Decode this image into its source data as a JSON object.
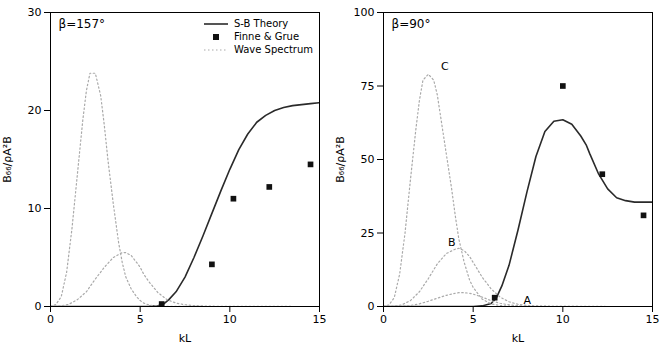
{
  "chart_data": [
    {
      "type": "line",
      "xlabel": "kL",
      "ylabel": "B₆₆/ρA²B",
      "xlim": [
        0,
        15
      ],
      "xticks": [
        0,
        5,
        10,
        15
      ],
      "ylim": [
        0,
        30
      ],
      "yticks": [
        0,
        10,
        20,
        30
      ],
      "legend": "upper right",
      "annotations": [
        {
          "text": "β=157°"
        }
      ],
      "series": [
        {
          "name": "S-B Theory",
          "type": "line",
          "line_style": "solid",
          "color": "#2a2a2a",
          "x": [
            0,
            1,
            2,
            3,
            4,
            5,
            5.5,
            6.0,
            6.3,
            6.6,
            7.0,
            7.5,
            8.0,
            8.5,
            9.0,
            9.5,
            10.0,
            10.5,
            11.0,
            11.5,
            12.0,
            12.5,
            13.0,
            13.5,
            14.0,
            14.5,
            15.0
          ],
          "values": [
            0,
            0,
            0,
            0,
            0,
            0,
            0.02,
            0.08,
            0.25,
            0.7,
            1.5,
            3.0,
            5.0,
            7.2,
            9.5,
            11.8,
            14.0,
            16.0,
            17.6,
            18.8,
            19.5,
            20.0,
            20.3,
            20.5,
            20.6,
            20.7,
            20.8
          ]
        },
        {
          "name": "Finne & Grue",
          "type": "scatter",
          "marker": "square",
          "color": "#111111",
          "x": [
            6.2,
            9.0,
            10.2,
            12.2,
            14.5
          ],
          "values": [
            0.25,
            4.3,
            11.0,
            12.2,
            14.5
          ]
        },
        {
          "name": "Wave Spectrum",
          "type": "line",
          "line_style": "dotted",
          "color": "#aaaaaa",
          "x": [
            0.0,
            0.3,
            0.6,
            0.9,
            1.2,
            1.5,
            1.8,
            2.0,
            2.2,
            2.5,
            2.8,
            3.0,
            3.2,
            3.5,
            3.8,
            4.0,
            4.2,
            4.5,
            4.8,
            5.0,
            5.2,
            5.5,
            5.8,
            6.0,
            6.5,
            7.0,
            7.5,
            8.0,
            9.0,
            10.0,
            11.0,
            12.0,
            13.0,
            14.0,
            15.0
          ],
          "values": [
            0,
            0.2,
            1.0,
            3.5,
            8.0,
            13.5,
            19.0,
            22.0,
            23.8,
            23.8,
            21.5,
            18.5,
            15.0,
            10.5,
            6.5,
            4.5,
            3.0,
            1.8,
            1.0,
            0.6,
            0.35,
            0.15,
            0.07,
            0.04,
            0.015,
            0.007,
            0.004,
            0.003,
            0.002,
            0.002,
            0.001,
            0.001,
            0.001,
            0.001,
            0.001
          ]
        },
        {
          "name": "Wave Spectrum",
          "type": "line",
          "line_style": "dotted",
          "color": "#aaaaaa",
          "x": [
            0.0,
            0.5,
            1.0,
            1.5,
            2.0,
            2.5,
            3.0,
            3.5,
            4.0,
            4.2,
            4.5,
            4.8,
            5.0,
            5.2,
            5.5,
            6.0,
            6.5,
            7.0,
            7.5,
            8.0,
            9.0,
            10.0,
            11.0,
            12.0,
            13.0,
            14.0,
            15.0
          ],
          "values": [
            0,
            0.05,
            0.2,
            0.7,
            1.5,
            2.8,
            4.0,
            5.0,
            5.5,
            5.5,
            5.2,
            4.5,
            4.0,
            3.3,
            2.5,
            1.4,
            0.7,
            0.35,
            0.18,
            0.09,
            0.03,
            0.015,
            0.008,
            0.005,
            0.003,
            0.002,
            0.002
          ]
        }
      ]
    },
    {
      "type": "line",
      "xlabel": "kL",
      "ylabel": "B₆₆/ρA²B",
      "xlim": [
        0,
        15
      ],
      "xticks": [
        0,
        5,
        10,
        15
      ],
      "ylim": [
        0,
        100
      ],
      "yticks": [
        0,
        25,
        50,
        75,
        100
      ],
      "annotations": [
        {
          "text": "β=90°"
        },
        {
          "text": "A",
          "x": 7.8,
          "y": 1.0
        },
        {
          "text": "B",
          "x": 3.6,
          "y": 20.5
        },
        {
          "text": "C",
          "x": 3.2,
          "y": 80.5
        }
      ],
      "series": [
        {
          "type": "line",
          "line_style": "solid",
          "color": "#2a2a2a",
          "x": [
            0,
            1,
            2,
            3,
            4,
            5,
            5.5,
            6.0,
            6.3,
            6.6,
            7.0,
            7.5,
            8.0,
            8.5,
            9.0,
            9.5,
            10.0,
            10.5,
            11.0,
            11.3,
            11.5,
            12.0,
            12.5,
            13.0,
            13.5,
            14.0,
            14.5,
            15.0
          ],
          "values": [
            0,
            0,
            0,
            0,
            0,
            0,
            0.2,
            1.0,
            3.0,
            7.0,
            14.0,
            26.0,
            39.0,
            51.0,
            59.5,
            63.0,
            63.5,
            62.0,
            58.0,
            55.0,
            52.0,
            45.0,
            40.0,
            37.0,
            36.0,
            35.5,
            35.5,
            35.5
          ]
        },
        {
          "type": "scatter",
          "marker": "square",
          "color": "#111111",
          "x": [
            6.2,
            10.0,
            12.2,
            14.5
          ],
          "values": [
            3.0,
            75.0,
            45.0,
            31.0
          ]
        },
        {
          "type": "line",
          "line_style": "dotted",
          "color": "#aaaaaa",
          "x": [
            0.0,
            0.3,
            0.6,
            0.9,
            1.2,
            1.5,
            1.8,
            2.0,
            2.2,
            2.5,
            2.8,
            3.0,
            3.2,
            3.5,
            3.8,
            4.0,
            4.2,
            4.5,
            4.8,
            5.0,
            5.5,
            6.0,
            6.5,
            7.0,
            7.5,
            8.0,
            9.0,
            10.0,
            11.0,
            12.0,
            13.0,
            14.0,
            15.0
          ],
          "values": [
            0,
            0.5,
            3.0,
            11.0,
            25.0,
            43.0,
            60.0,
            70.0,
            77.0,
            79.0,
            77.0,
            72.0,
            64.0,
            52.0,
            40.0,
            31.0,
            23.0,
            15.0,
            9.0,
            6.5,
            2.5,
            0.9,
            0.35,
            0.14,
            0.06,
            0.03,
            0.01,
            0.005,
            0.003,
            0.002,
            0.001,
            0.001,
            0.001
          ]
        },
        {
          "type": "line",
          "line_style": "dotted",
          "color": "#aaaaaa",
          "x": [
            0.0,
            0.5,
            1.0,
            1.5,
            2.0,
            2.5,
            3.0,
            3.5,
            4.0,
            4.2,
            4.5,
            4.8,
            5.0,
            5.5,
            6.0,
            6.5,
            7.0,
            7.5,
            8.0,
            9.0,
            10.0,
            11.0,
            12.0,
            13.0,
            14.0,
            15.0
          ],
          "values": [
            0,
            0.1,
            0.5,
            2.0,
            5.0,
            9.5,
            14.5,
            18.0,
            19.5,
            19.8,
            19.0,
            17.0,
            15.0,
            10.0,
            6.0,
            3.2,
            1.6,
            0.75,
            0.35,
            0.1,
            0.04,
            0.02,
            0.01,
            0.006,
            0.004,
            0.003
          ]
        },
        {
          "type": "line",
          "line_style": "dotted",
          "color": "#aaaaaa",
          "x": [
            0.0,
            0.5,
            1.0,
            1.5,
            2.0,
            2.5,
            3.0,
            3.5,
            4.0,
            4.2,
            4.5,
            4.8,
            5.0,
            5.5,
            6.0,
            6.5,
            7.0,
            7.5,
            8.0,
            9.0,
            10.0,
            11.0,
            12.0,
            13.0,
            14.0,
            15.0
          ],
          "values": [
            0,
            0.02,
            0.1,
            0.35,
            0.9,
            1.8,
            2.8,
            3.8,
            4.5,
            4.7,
            4.7,
            4.5,
            4.2,
            3.2,
            2.0,
            1.1,
            0.55,
            0.26,
            0.12,
            0.04,
            0.015,
            0.007,
            0.004,
            0.002,
            0.001,
            0.001
          ]
        }
      ]
    }
  ]
}
